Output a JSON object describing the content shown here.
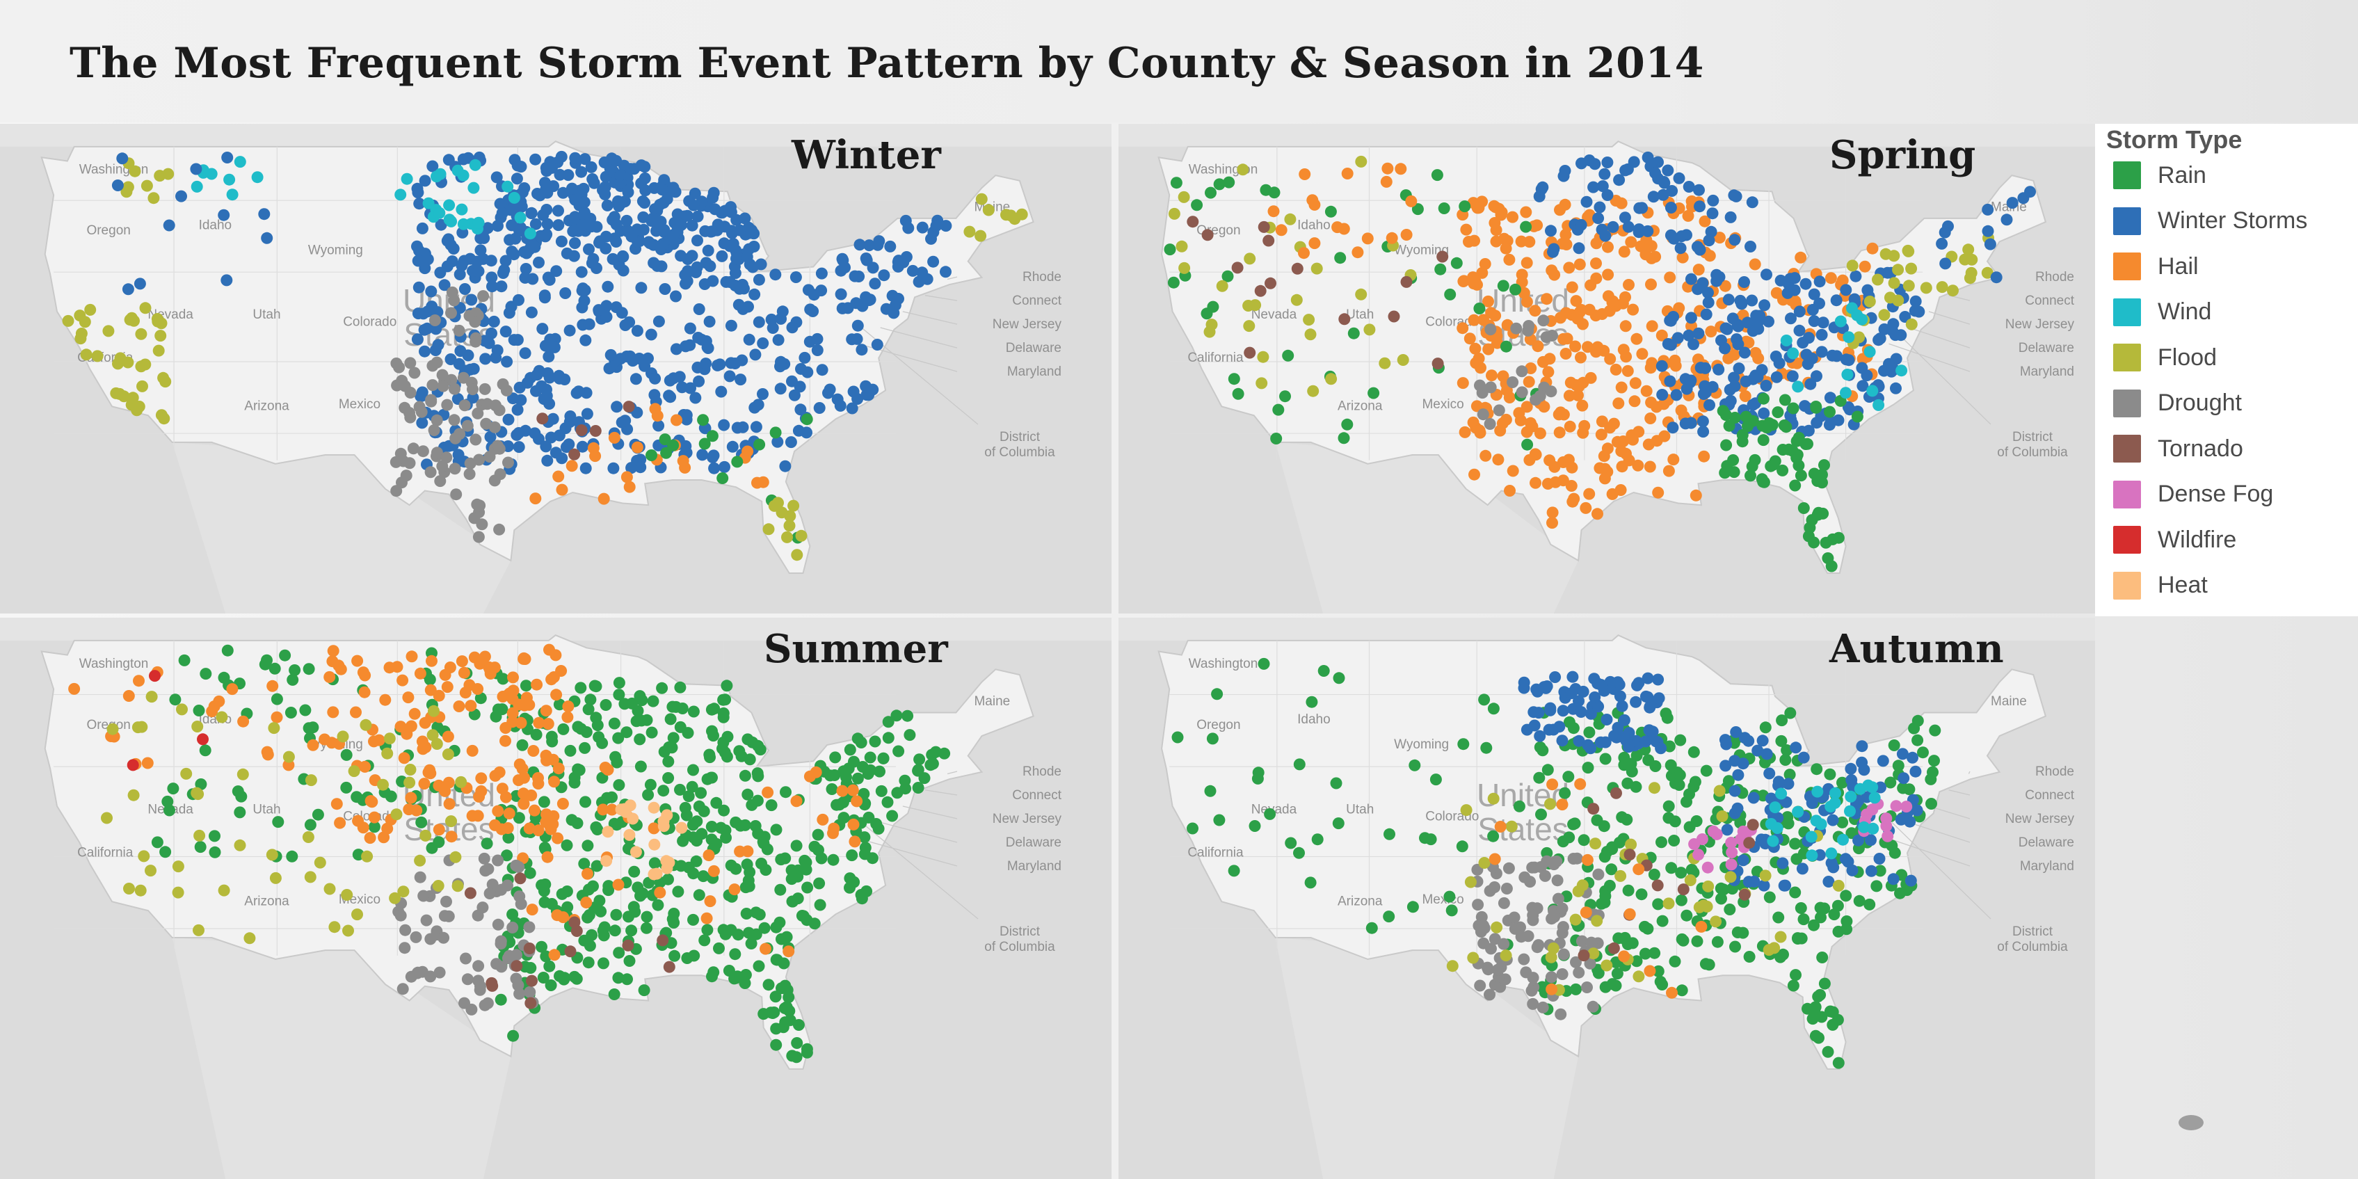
{
  "title": "The Most Frequent Storm Event Pattern by County & Season in 2014",
  "colors": {
    "Rain": "#2ca048",
    "Winter Storms": "#2e6fb7",
    "Hail": "#f58a2e",
    "Wind": "#1fbcc9",
    "Flood": "#b5b93a",
    "Drought": "#8b8b8b",
    "Tornado": "#8c5a4f",
    "Dense Fog": "#d873c0",
    "Wildfire": "#d62d2d",
    "Heat": "#fcbd7e"
  },
  "legend": {
    "title": "Storm Type",
    "items": [
      "Rain",
      "Winter Storms",
      "Hail",
      "Wind",
      "Flood",
      "Drought",
      "Tornado",
      "Dense Fog",
      "Wildfire",
      "Heat"
    ]
  },
  "map_labels": {
    "washington": "Washington",
    "oregon": "Oregon",
    "idaho": "Idaho",
    "nevada": "Nevada",
    "utah": "Utah",
    "wyoming": "Wyoming",
    "colorado": "Colorado",
    "arizona": "Arizona",
    "california": "California",
    "mexico": "Mexico",
    "maine": "Maine",
    "rhode": "Rhode",
    "connect": "Connect",
    "new_jersey": "New Jersey",
    "delaware": "Delaware",
    "maryland": "Maryland",
    "district_1": "District",
    "district_2": "of Columbia",
    "united_1": "United",
    "united_2": "States"
  },
  "panels": [
    {
      "season": "Winter",
      "clusters": [
        {
          "type": "Winter Storms",
          "lon": [
            -103,
            -72
          ],
          "lat": [
            31,
            48.5
          ],
          "n": 560
        },
        {
          "type": "Winter Storms",
          "lon": [
            -98,
            -88
          ],
          "lat": [
            43,
            48.5
          ],
          "n": 110
        },
        {
          "type": "Winter Storms",
          "lon": [
            -89,
            -83
          ],
          "lat": [
            42,
            47
          ],
          "n": 60
        },
        {
          "type": "Drought",
          "lon": [
            -104.5,
            -97.5
          ],
          "lat": [
            27,
            37
          ],
          "n": 80
        },
        {
          "type": "Drought",
          "lon": [
            -102,
            -99
          ],
          "lat": [
            38,
            41
          ],
          "n": 12
        },
        {
          "type": "Wind",
          "lon": [
            -104,
            -96
          ],
          "lat": [
            44,
            48
          ],
          "n": 24
        },
        {
          "type": "Wind",
          "lon": [
            -117,
            -112
          ],
          "lat": [
            46,
            48.5
          ],
          "n": 8
        },
        {
          "type": "Flood",
          "lon": [
            -123.5,
            -117.5
          ],
          "lat": [
            33,
            40
          ],
          "n": 36
        },
        {
          "type": "Flood",
          "lon": [
            -120,
            -117
          ],
          "lat": [
            46,
            48.5
          ],
          "n": 8
        },
        {
          "type": "Flood",
          "lon": [
            -71,
            -67.5
          ],
          "lat": [
            43.5,
            46.5
          ],
          "n": 8
        },
        {
          "type": "Winter Storms",
          "lon": [
            -121,
            -111
          ],
          "lat": [
            41,
            48.5
          ],
          "n": 12
        },
        {
          "type": "Hail",
          "lon": [
            -97,
            -82
          ],
          "lat": [
            29,
            35
          ],
          "n": 22
        },
        {
          "type": "Rain",
          "lon": [
            -90,
            -80
          ],
          "lat": [
            26,
            34
          ],
          "n": 14
        },
        {
          "type": "Flood",
          "lon": [
            -82.5,
            -80
          ],
          "lat": [
            25.5,
            30
          ],
          "n": 10
        },
        {
          "type": "Tornado",
          "lon": [
            -97,
            -90
          ],
          "lat": [
            30,
            36
          ],
          "n": 5
        }
      ]
    },
    {
      "season": "Spring",
      "clusters": [
        {
          "type": "Hail",
          "lon": [
            -105,
            -89
          ],
          "lat": [
            28,
            46
          ],
          "n": 310
        },
        {
          "type": "Hail",
          "lon": [
            -90,
            -78
          ],
          "lat": [
            35,
            44
          ],
          "n": 70
        },
        {
          "type": "Winter Storms",
          "lon": [
            -92,
            -75
          ],
          "lat": [
            33,
            42
          ],
          "n": 190
        },
        {
          "type": "Winter Storms",
          "lon": [
            -100,
            -86
          ],
          "lat": [
            43,
            48.5
          ],
          "n": 70
        },
        {
          "type": "Rain",
          "lon": [
            -88,
            -79
          ],
          "lat": [
            25.5,
            35
          ],
          "n": 70
        },
        {
          "type": "Rain",
          "lon": [
            -124,
            -100
          ],
          "lat": [
            32,
            48
          ],
          "n": 45
        },
        {
          "type": "Flood",
          "lon": [
            -124,
            -108
          ],
          "lat": [
            35,
            48.5
          ],
          "n": 30
        },
        {
          "type": "Flood",
          "lon": [
            -80,
            -70
          ],
          "lat": [
            38,
            44
          ],
          "n": 30
        },
        {
          "type": "Drought",
          "lon": [
            -104,
            -99
          ],
          "lat": [
            33,
            40
          ],
          "n": 20
        },
        {
          "type": "Tornado",
          "lon": [
            -124,
            -105
          ],
          "lat": [
            36,
            46
          ],
          "n": 14
        },
        {
          "type": "Wind",
          "lon": [
            -84,
            -76
          ],
          "lat": [
            34,
            40
          ],
          "n": 14
        },
        {
          "type": "Hail",
          "lon": [
            -118,
            -108
          ],
          "lat": [
            43,
            48
          ],
          "n": 18
        },
        {
          "type": "Winter Storms",
          "lon": [
            -74,
            -68
          ],
          "lat": [
            41,
            46.5
          ],
          "n": 12
        }
      ]
    },
    {
      "season": "Summer",
      "clusters": [
        {
          "type": "Rain",
          "lon": [
            -98,
            -72
          ],
          "lat": [
            27,
            47
          ],
          "n": 470
        },
        {
          "type": "Rain",
          "lon": [
            -118,
            -98
          ],
          "lat": [
            37,
            48.5
          ],
          "n": 80
        },
        {
          "type": "Hail",
          "lon": [
            -108,
            -94
          ],
          "lat": [
            38,
            48.5
          ],
          "n": 150
        },
        {
          "type": "Hail",
          "lon": [
            -97,
            -77
          ],
          "lat": [
            31,
            42
          ],
          "n": 45
        },
        {
          "type": "Hail",
          "lon": [
            -124,
            -108
          ],
          "lat": [
            42,
            48
          ],
          "n": 20
        },
        {
          "type": "Drought",
          "lon": [
            -104,
            -96
          ],
          "lat": [
            28,
            37
          ],
          "n": 70
        },
        {
          "type": "Flood",
          "lon": [
            -121,
            -100
          ],
          "lat": [
            32,
            46
          ],
          "n": 60
        },
        {
          "type": "Heat",
          "lon": [
            -92,
            -87
          ],
          "lat": [
            36,
            40
          ],
          "n": 20
        },
        {
          "type": "Tornado",
          "lon": [
            -100,
            -88
          ],
          "lat": [
            28,
            36
          ],
          "n": 14
        },
        {
          "type": "Wildfire",
          "lon": [
            -121,
            -115
          ],
          "lat": [
            42,
            48
          ],
          "n": 3
        },
        {
          "type": "Rain",
          "lon": [
            -84,
            -80
          ],
          "lat": [
            25.5,
            30
          ],
          "n": 14
        }
      ]
    },
    {
      "season": "Autumn",
      "clusters": [
        {
          "type": "Rain",
          "lon": [
            -100,
            -74
          ],
          "lat": [
            28,
            45
          ],
          "n": 320
        },
        {
          "type": "Rain",
          "lon": [
            -124,
            -100
          ],
          "lat": [
            32,
            48
          ],
          "n": 40
        },
        {
          "type": "Winter Storms",
          "lon": [
            -101,
            -92
          ],
          "lat": [
            43,
            47
          ],
          "n": 80
        },
        {
          "type": "Winter Storms",
          "lon": [
            -88,
            -75
          ],
          "lat": [
            35,
            44
          ],
          "n": 100
        },
        {
          "type": "Drought",
          "lon": [
            -104,
            -96
          ],
          "lat": [
            28,
            37
          ],
          "n": 95
        },
        {
          "type": "Flood",
          "lon": [
            -106,
            -80
          ],
          "lat": [
            29,
            41
          ],
          "n": 45
        },
        {
          "type": "Dense Fog",
          "lon": [
            -90,
            -86
          ],
          "lat": [
            36,
            38.5
          ],
          "n": 14
        },
        {
          "type": "Dense Fog",
          "lon": [
            -79,
            -76
          ],
          "lat": [
            38,
            40
          ],
          "n": 10
        },
        {
          "type": "Wind",
          "lon": [
            -85,
            -78
          ],
          "lat": [
            37,
            41
          ],
          "n": 24
        },
        {
          "type": "Tornado",
          "lon": [
            -98,
            -86
          ],
          "lat": [
            30,
            42
          ],
          "n": 12
        },
        {
          "type": "Hail",
          "lon": [
            -103,
            -88
          ],
          "lat": [
            29,
            42
          ],
          "n": 14
        },
        {
          "type": "Rain",
          "lon": [
            -82.5,
            -80
          ],
          "lat": [
            25.5,
            30
          ],
          "n": 12
        }
      ]
    }
  ]
}
